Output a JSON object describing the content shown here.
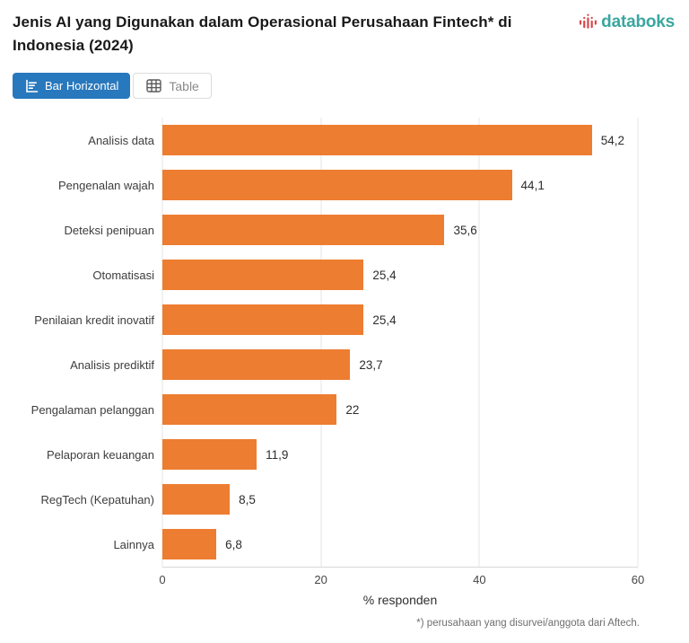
{
  "header": {
    "title": "Jenis AI yang Digunakan dalam Operasional Perusahaan Fintech* di Indonesia (2024)",
    "logo_text": "databoks"
  },
  "toolbar": {
    "bar_tab_label": "Bar Horizontal",
    "table_tab_label": "Table"
  },
  "chart_data": {
    "type": "bar",
    "orientation": "horizontal",
    "title": "Jenis AI yang Digunakan dalam Operasional Perusahaan Fintech* di Indonesia (2024)",
    "categories": [
      "Analisis data",
      "Pengenalan wajah",
      "Deteksi penipuan",
      "Otomatisasi",
      "Penilaian kredit inovatif",
      "Analisis prediktif",
      "Pengalaman pelanggan",
      "Pelaporan keuangan",
      "RegTech (Kepatuhan)",
      "Lainnya"
    ],
    "values": [
      54.2,
      44.1,
      35.6,
      25.4,
      25.4,
      23.7,
      22,
      11.9,
      8.5,
      6.8
    ],
    "value_labels": [
      "54,2",
      "44,1",
      "35,6",
      "25,4",
      "25,4",
      "23,7",
      "22",
      "11,9",
      "8,5",
      "6,8"
    ],
    "xlabel": "% responden",
    "ylabel": "",
    "xlim": [
      0,
      60
    ],
    "x_ticks": [
      0,
      20,
      40,
      60
    ],
    "x_tick_labels": [
      "0",
      "20",
      "40",
      "60"
    ],
    "grid": true,
    "legend": "none",
    "bar_color": "#ed7d31"
  },
  "footnote": "*) perusahaan yang disurvei/anggota dari Aftech.",
  "colors": {
    "bar_orange": "#ed7d31",
    "active_tab_blue": "#2878bd",
    "logo_teal": "#3aa79f",
    "logo_red": "#d9474b",
    "gridline": "#e6e6e6",
    "axis_line": "#d8d8d8"
  }
}
